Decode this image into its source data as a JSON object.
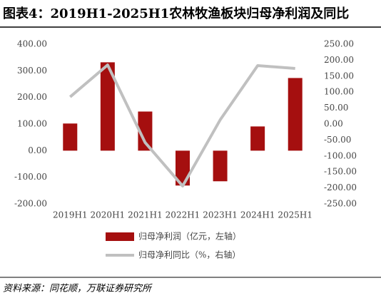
{
  "chart_data": {
    "type": "bar",
    "title": "图表4：2019H1-2025H1农林牧渔板块归母净利润及同比",
    "source": "资料来源：同花顺，万联证券研究所",
    "categories": [
      "2019H1",
      "2020H1",
      "2021H1",
      "2022H1",
      "2023H1",
      "2024H1",
      "2025H1"
    ],
    "series": [
      {
        "name": "归母净利润（亿元，左轴）",
        "type": "bar",
        "color": "#a50f0f",
        "values": [
          102,
          332,
          147,
          -131,
          -115,
          91,
          273
        ]
      },
      {
        "name": "归母净利同比（%，右轴）",
        "type": "line",
        "axis": "y2",
        "color": "#c0c0c0",
        "values": [
          85,
          185,
          -58,
          -194,
          13,
          183,
          174
        ]
      }
    ],
    "ylim": [
      -200,
      400
    ],
    "yticks": [
      {
        "value": -200,
        "label": "-200.00"
      },
      {
        "value": -100,
        "label": "-100.00"
      },
      {
        "value": 0,
        "label": "0.00"
      },
      {
        "value": 100,
        "label": "100.00"
      },
      {
        "value": 200,
        "label": "200.00"
      },
      {
        "value": 300,
        "label": "300.00"
      },
      {
        "value": 400,
        "label": "400.00"
      }
    ],
    "y2lim": [
      -250,
      250
    ],
    "y2ticks": [
      {
        "value": -250,
        "label": "-250.00"
      },
      {
        "value": -200,
        "label": "-200.00"
      },
      {
        "value": -150,
        "label": "-150.00"
      },
      {
        "value": -100,
        "label": "-100.00"
      },
      {
        "value": -50,
        "label": "-50.00"
      },
      {
        "value": 0,
        "label": "0.00"
      },
      {
        "value": 50,
        "label": "50.00"
      },
      {
        "value": 100,
        "label": "100.00"
      },
      {
        "value": 150,
        "label": "150.00"
      },
      {
        "value": 200,
        "label": "200.00"
      },
      {
        "value": 250,
        "label": "250.00"
      }
    ],
    "grid": false
  }
}
